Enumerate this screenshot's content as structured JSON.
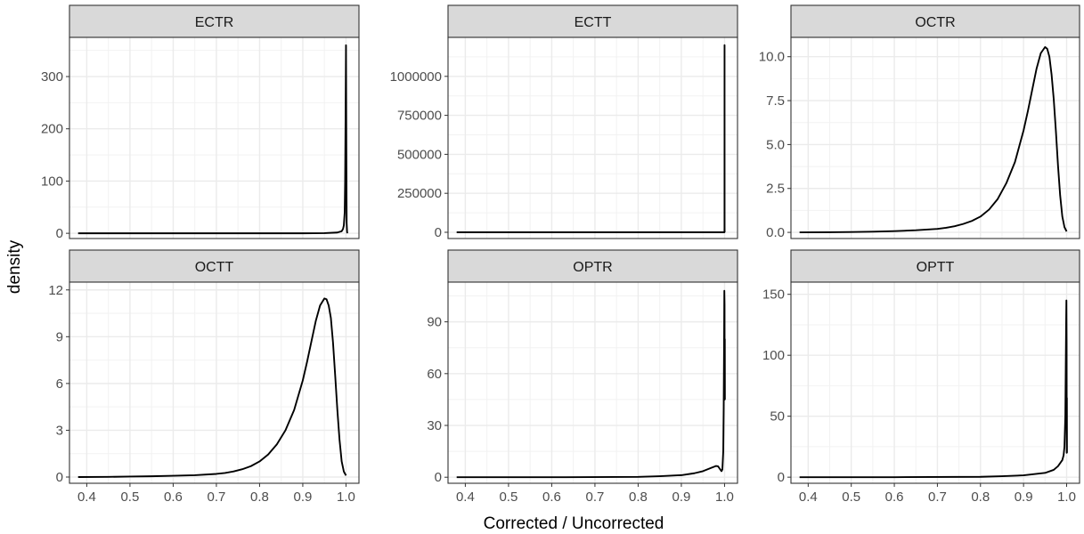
{
  "chart_data": {
    "type": "line",
    "xlabel": "Corrected / Uncorrected",
    "ylabel": "density",
    "xlim": [
      0.36,
      1.03
    ],
    "x_ticks": [
      0.4,
      0.5,
      0.6,
      0.7,
      0.8,
      0.9,
      1.0
    ],
    "x_tick_labels": [
      "0.4",
      "0.5",
      "0.6",
      "0.7",
      "0.8",
      "0.9",
      "1.0"
    ],
    "grid": true,
    "theme": "bw",
    "line_color": "#000000",
    "panels": [
      {
        "title": "ECTR",
        "ylim": [
          -10,
          375
        ],
        "y_ticks": [
          0,
          100,
          200,
          300
        ],
        "y_tick_labels": [
          "0",
          "100",
          "200",
          "300"
        ],
        "series": [
          {
            "x": [
              0.38,
              0.5,
              0.6,
              0.7,
              0.8,
              0.9,
              0.95,
              0.98,
              0.99,
              0.993,
              0.995,
              0.997,
              0.998,
              0.999,
              1.0,
              1.001,
              1.0015,
              1.0025,
              1.003
            ],
            "y": [
              0,
              0,
              0,
              0,
              0,
              0,
              0.3,
              1.5,
              4,
              8,
              15,
              40,
              100,
              220,
              360,
              120,
              20,
              3,
              0
            ]
          }
        ]
      },
      {
        "title": "ECTT",
        "ylim": [
          -40000,
          1250000
        ],
        "y_ticks": [
          0,
          250000,
          500000,
          750000,
          1000000
        ],
        "y_tick_labels": [
          "0",
          "250000",
          "500000",
          "750000",
          "1000000"
        ],
        "series": [
          {
            "x": [
              0.38,
              0.6,
              0.8,
              0.99,
              0.9995,
              0.9998,
              0.9999,
              0.99995,
              1.0,
              1.00005,
              1.0001,
              1.0002,
              1.0004
            ],
            "y": [
              0,
              0,
              0,
              0,
              0,
              1000,
              30000,
              400000,
              1200000,
              400000,
              30000,
              1000,
              0
            ]
          }
        ]
      },
      {
        "title": "OCTR",
        "ylim": [
          -0.35,
          11.1
        ],
        "y_ticks": [
          0,
          2.5,
          5,
          7.5,
          10
        ],
        "y_tick_labels": [
          "0.0",
          "2.5",
          "5.0",
          "7.5",
          "10.0"
        ],
        "series": [
          {
            "x": [
              0.38,
              0.45,
              0.5,
              0.55,
              0.6,
              0.65,
              0.7,
              0.72,
              0.74,
              0.76,
              0.78,
              0.8,
              0.82,
              0.84,
              0.86,
              0.88,
              0.9,
              0.91,
              0.92,
              0.93,
              0.94,
              0.95,
              0.955,
              0.96,
              0.965,
              0.97,
              0.975,
              0.98,
              0.985,
              0.99,
              0.995,
              1.0
            ],
            "y": [
              0,
              0.01,
              0.02,
              0.04,
              0.07,
              0.12,
              0.2,
              0.26,
              0.35,
              0.48,
              0.65,
              0.9,
              1.3,
              1.9,
              2.8,
              4.0,
              5.8,
              6.9,
              8.1,
              9.3,
              10.2,
              10.55,
              10.45,
              10.0,
              9.0,
              7.6,
              5.8,
              3.8,
              2.1,
              0.9,
              0.3,
              0.05
            ]
          }
        ]
      },
      {
        "title": "OCTT",
        "ylim": [
          -0.4,
          12.5
        ],
        "y_ticks": [
          0,
          3,
          6,
          9,
          12
        ],
        "y_tick_labels": [
          "0",
          "3",
          "6",
          "9",
          "12"
        ],
        "series": [
          {
            "x": [
              0.38,
              0.45,
              0.5,
              0.55,
              0.6,
              0.65,
              0.7,
              0.72,
              0.74,
              0.76,
              0.78,
              0.8,
              0.82,
              0.84,
              0.86,
              0.88,
              0.9,
              0.91,
              0.92,
              0.93,
              0.94,
              0.95,
              0.955,
              0.96,
              0.965,
              0.97,
              0.975,
              0.98,
              0.985,
              0.99,
              0.995,
              1.0
            ],
            "y": [
              0,
              0.01,
              0.03,
              0.05,
              0.08,
              0.12,
              0.2,
              0.26,
              0.36,
              0.5,
              0.7,
              1.0,
              1.45,
              2.1,
              3.0,
              4.3,
              6.2,
              7.4,
              8.7,
              10.0,
              11.0,
              11.45,
              11.4,
              11.0,
              10.2,
              8.6,
              6.5,
              4.3,
              2.4,
              1.0,
              0.35,
              0.1
            ]
          }
        ]
      },
      {
        "title": "OPTR",
        "ylim": [
          -3.5,
          113
        ],
        "y_ticks": [
          0,
          30,
          60,
          90
        ],
        "y_tick_labels": [
          "0",
          "30",
          "60",
          "90"
        ],
        "series": [
          {
            "x": [
              0.38,
              0.6,
              0.8,
              0.85,
              0.9,
              0.93,
              0.95,
              0.97,
              0.98,
              0.985,
              0.99,
              0.993,
              0.995,
              0.997,
              0.998,
              0.999,
              0.9995,
              1.0,
              1.0003,
              1.0006,
              1.0008
            ],
            "y": [
              0,
              0,
              0.2,
              0.6,
              1.2,
              2.3,
              3.5,
              5.5,
              6.5,
              6.3,
              4.5,
              3.5,
              4.5,
              15,
              40,
              80,
              108,
              100,
              45,
              80,
              45
            ]
          }
        ]
      },
      {
        "title": "OPTT",
        "ylim": [
          -5,
          160
        ],
        "y_ticks": [
          0,
          50,
          100,
          150
        ],
        "y_tick_labels": [
          "0",
          "50",
          "100",
          "150"
        ],
        "series": [
          {
            "x": [
              0.38,
              0.6,
              0.8,
              0.85,
              0.9,
              0.95,
              0.97,
              0.98,
              0.99,
              0.993,
              0.995,
              0.997,
              0.998,
              0.999,
              0.9995,
              1.0,
              1.0003,
              1.0006,
              1.0008
            ],
            "y": [
              0,
              0,
              0.3,
              0.8,
              1.5,
              3.5,
              6,
              9,
              14,
              18,
              25,
              50,
              90,
              130,
              145,
              110,
              20,
              65,
              20
            ]
          }
        ]
      }
    ]
  }
}
